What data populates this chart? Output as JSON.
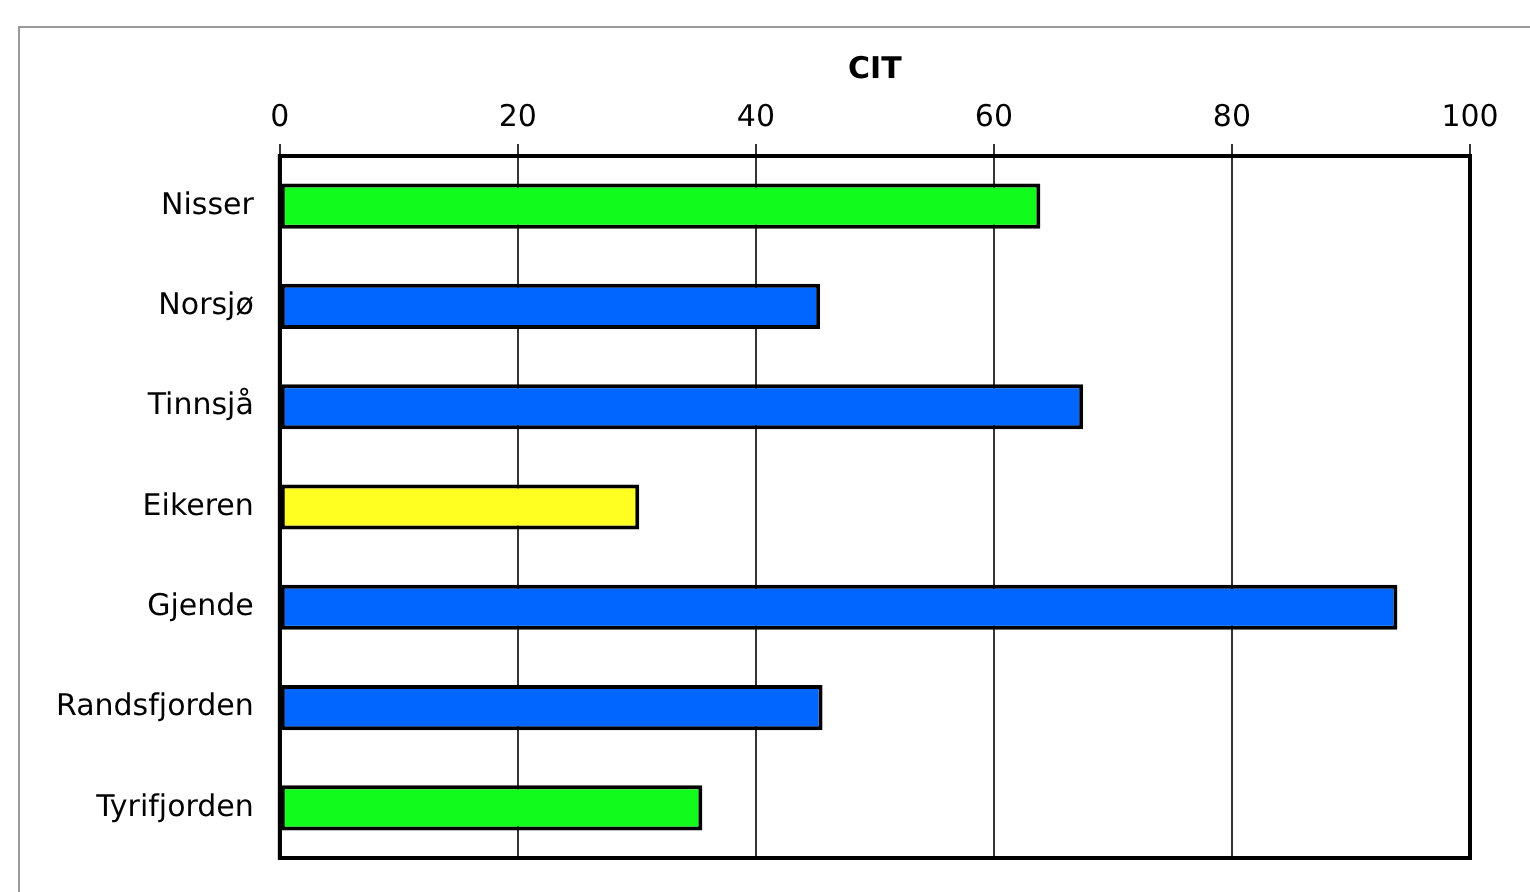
{
  "chart_data": {
    "type": "bar",
    "orientation": "horizontal",
    "xlabel": "CIT",
    "categories": [
      "Nisser",
      "Norsjø",
      "Tinnsjå",
      "Eikeren",
      "Gjende",
      "Randsfjorden",
      "Tyrifjorden"
    ],
    "values": [
      63.9,
      45.4,
      67.5,
      30.2,
      93.9,
      45.6,
      35.5
    ],
    "colors": [
      "#11fb1c",
      "#0066ff",
      "#0066ff",
      "#ffff22",
      "#0066ff",
      "#0066ff",
      "#11fb1c"
    ],
    "xlim": [
      0,
      100
    ],
    "xticks": [
      0,
      20,
      40,
      60,
      80,
      100
    ],
    "grid": "x",
    "legend": false
  }
}
